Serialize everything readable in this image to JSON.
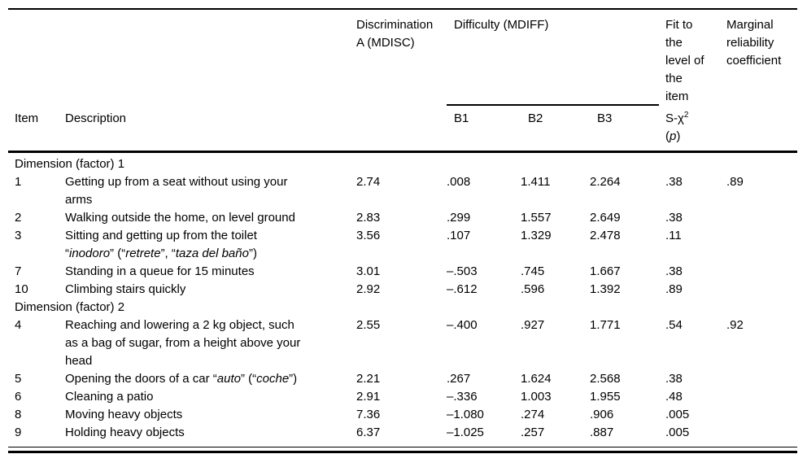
{
  "header": {
    "item": "Item",
    "description": "Description",
    "mdisc_lines": [
      "Discrimination",
      "A (MDISC)"
    ],
    "mdiff": "Difficulty (MDIFF)",
    "b1": "B1",
    "b2": "B2",
    "b3": "B3",
    "fit_lines": [
      "Fit to",
      "the",
      "level of",
      "the",
      "item"
    ],
    "schi_base": "S-χ",
    "schi_sup": "2",
    "p_open": "(",
    "p_char": "p",
    "p_close": ")",
    "marginal_lines": [
      "Marginal",
      "reliability",
      "coefficient"
    ]
  },
  "sections": [
    {
      "label": "Dimension (factor) 1",
      "rows": [
        {
          "item": "1",
          "desc": [
            [
              {
                "t": "Getting up from a seat without using your"
              }
            ],
            [
              {
                "t": "arms"
              }
            ]
          ],
          "mdisc": "2.74",
          "b1": ".008",
          "b2": "1.411",
          "b3": "2.264",
          "schi": ".38",
          "marginal": ".89"
        },
        {
          "item": "2",
          "desc": [
            [
              {
                "t": "Walking outside the home, on level ground"
              }
            ]
          ],
          "mdisc": "2.83",
          "b1": ".299",
          "b2": "1.557",
          "b3": "2.649",
          "schi": ".38",
          "marginal": ""
        },
        {
          "item": "3",
          "desc": [
            [
              {
                "t": "Sitting and getting up from the toilet"
              }
            ],
            [
              {
                "t": "“"
              },
              {
                "t": "inodoro",
                "i": true
              },
              {
                "t": "” (“"
              },
              {
                "t": "retrete",
                "i": true
              },
              {
                "t": "”, “"
              },
              {
                "t": "taza del baño",
                "i": true
              },
              {
                "t": "”)"
              }
            ]
          ],
          "mdisc": "3.56",
          "b1": ".107",
          "b2": "1.329",
          "b3": "2.478",
          "schi": ".11",
          "marginal": ""
        },
        {
          "item": "7",
          "desc": [
            [
              {
                "t": "Standing in a queue for 15 minutes"
              }
            ]
          ],
          "mdisc": "3.01",
          "b1": "–.503",
          "b2": ".745",
          "b3": "1.667",
          "schi": ".38",
          "marginal": ""
        },
        {
          "item": "10",
          "desc": [
            [
              {
                "t": "Climbing stairs quickly"
              }
            ]
          ],
          "mdisc": "2.92",
          "b1": "–.612",
          "b2": ".596",
          "b3": "1.392",
          "schi": ".89",
          "marginal": ""
        }
      ]
    },
    {
      "label": "Dimension (factor) 2",
      "rows": [
        {
          "item": "4",
          "desc": [
            [
              {
                "t": "Reaching and lowering a 2 kg object, such"
              }
            ],
            [
              {
                "t": "as a bag of sugar, from a height above your"
              }
            ],
            [
              {
                "t": "head"
              }
            ]
          ],
          "mdisc": "2.55",
          "b1": "–.400",
          "b2": ".927",
          "b3": "1.771",
          "schi": ".54",
          "marginal": ".92"
        },
        {
          "item": "5",
          "desc": [
            [
              {
                "t": "Opening the doors of a car “"
              },
              {
                "t": "auto",
                "i": true
              },
              {
                "t": "” (“"
              },
              {
                "t": "coche",
                "i": true
              },
              {
                "t": "”)"
              }
            ]
          ],
          "mdisc": "2.21",
          "b1": ".267",
          "b2": "1.624",
          "b3": "2.568",
          "schi": ".38",
          "marginal": ""
        },
        {
          "item": "6",
          "desc": [
            [
              {
                "t": "Cleaning a patio"
              }
            ]
          ],
          "mdisc": "2.91",
          "b1": "–.336",
          "b2": "1.003",
          "b3": "1.955",
          "schi": ".48",
          "marginal": ""
        },
        {
          "item": "8",
          "desc": [
            [
              {
                "t": "Moving heavy objects"
              }
            ]
          ],
          "mdisc": "7.36",
          "b1": "–1.080",
          "b2": ".274",
          "b3": ".906",
          "schi": ".005",
          "marginal": ""
        },
        {
          "item": "9",
          "desc": [
            [
              {
                "t": "Holding heavy objects"
              }
            ]
          ],
          "mdisc": "6.37",
          "b1": "–1.025",
          "b2": ".257",
          "b3": ".887",
          "schi": ".005",
          "marginal": ""
        }
      ]
    }
  ]
}
